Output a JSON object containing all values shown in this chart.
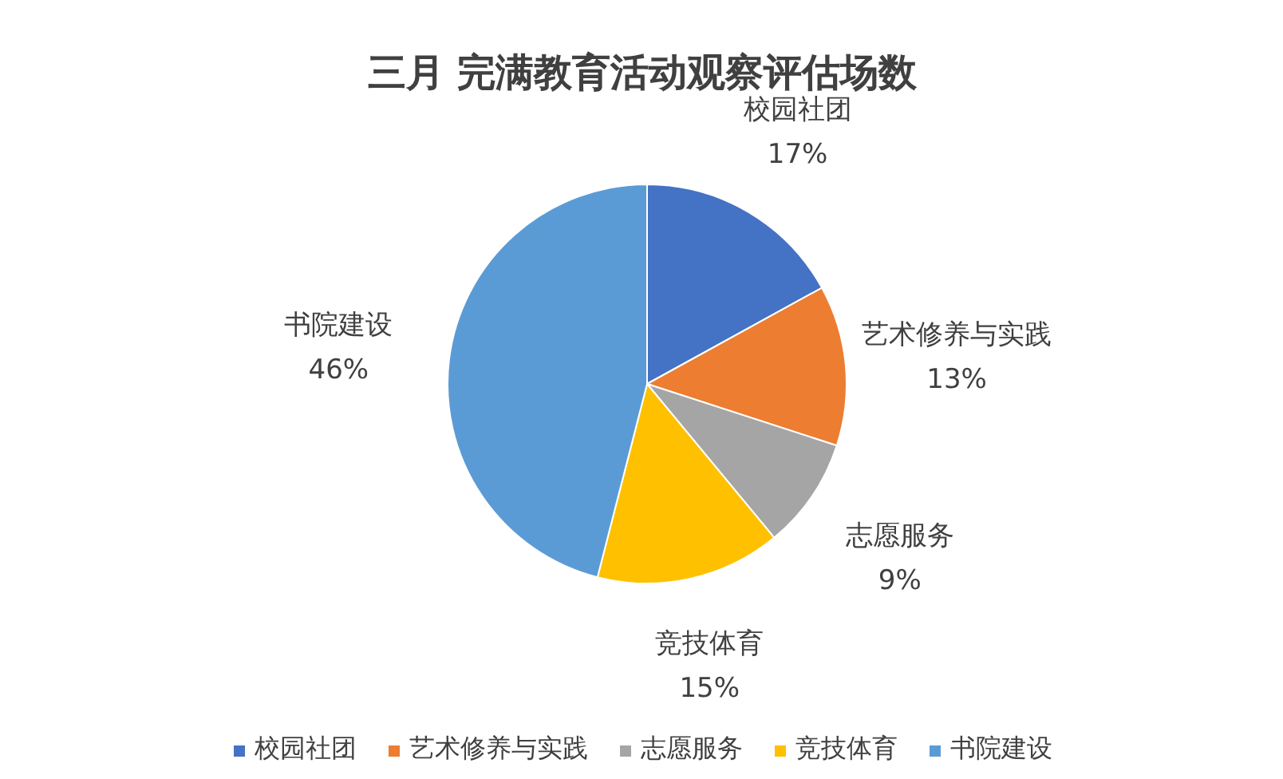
{
  "chart_data": {
    "type": "pie",
    "title": "三月 完满教育活动观察评估场数",
    "categories": [
      "校园社团",
      "艺术修养与实践",
      "志愿服务",
      "竞技体育",
      "书院建设"
    ],
    "values": [
      17,
      13,
      9,
      15,
      46
    ],
    "value_labels": [
      "17%",
      "13%",
      "9%",
      "15%",
      "46%"
    ],
    "colors": [
      "#4472c4",
      "#ed7d31",
      "#a5a5a5",
      "#ffc000",
      "#5b9bd5"
    ],
    "legend": "bottom"
  }
}
